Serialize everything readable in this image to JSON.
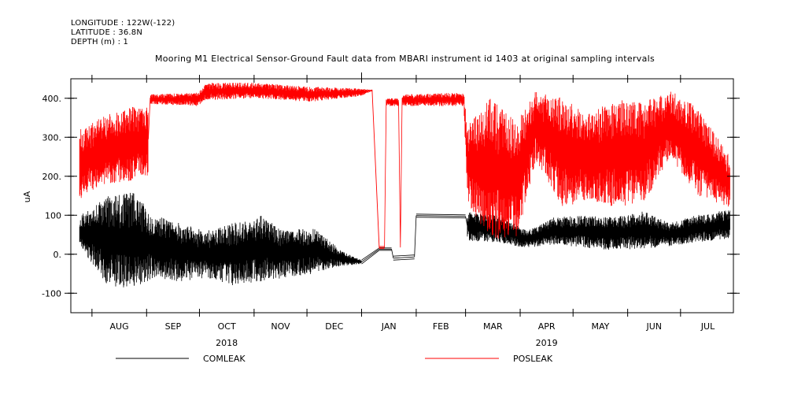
{
  "header": {
    "longitude": "LONGITUDE : 122W(-122)",
    "latitude": "LATITUDE : 36.8N",
    "depth": "DEPTH (m) : 1"
  },
  "chart_data": {
    "type": "line",
    "title": "Mooring M1 Electrical Sensor-Ground Fault data from MBARI instrument id 1403 at original sampling intervals",
    "ylabel": "uA",
    "ylim": [
      -150,
      450
    ],
    "yticks": [
      -100,
      0,
      100,
      200,
      300,
      400
    ],
    "yticklabels": [
      "-100",
      "0.",
      "100",
      "200.",
      "300.",
      "400."
    ],
    "xlim": [
      "2018-07-20",
      "2019-07-31"
    ],
    "xticklabels": [
      "AUG",
      "SEP",
      "OCT",
      "NOV",
      "DEC",
      "JAN",
      "FEB",
      "MAR",
      "APR",
      "MAY",
      "JUN",
      "JUL"
    ],
    "year_labels": [
      {
        "text": "2018",
        "month": "OCT"
      },
      {
        "text": "2019",
        "month": "APR"
      }
    ],
    "legend_placement": "bottom",
    "series": [
      {
        "name": "COMLEAK",
        "color": "#000000",
        "envelope": [
          {
            "date": "2018-07-25",
            "low": 20,
            "high": 100
          },
          {
            "date": "2018-08-10",
            "low": -80,
            "high": 150
          },
          {
            "date": "2018-08-25",
            "low": -90,
            "high": 160
          },
          {
            "date": "2018-09-05",
            "low": -60,
            "high": 100
          },
          {
            "date": "2018-09-20",
            "low": -70,
            "high": 80
          },
          {
            "date": "2018-10-05",
            "low": -60,
            "high": 60
          },
          {
            "date": "2018-10-20",
            "low": -80,
            "high": 80
          },
          {
            "date": "2018-11-05",
            "low": -70,
            "high": 100
          },
          {
            "date": "2018-11-20",
            "low": -60,
            "high": 60
          },
          {
            "date": "2018-12-05",
            "low": -50,
            "high": 70
          },
          {
            "date": "2018-12-20",
            "low": -30,
            "high": 10
          },
          {
            "date": "2019-01-01",
            "low": -25,
            "high": -15
          },
          {
            "date": "2019-01-11",
            "low": 10,
            "high": 16
          },
          {
            "date": "2019-01-18",
            "low": 10,
            "high": 16
          },
          {
            "date": "2019-01-19",
            "low": -15,
            "high": -5
          },
          {
            "date": "2019-01-31",
            "low": -12,
            "high": -2
          },
          {
            "date": "2019-02-01",
            "low": 95,
            "high": 103
          },
          {
            "date": "2019-03-01",
            "low": 93,
            "high": 101
          },
          {
            "date": "2019-03-02",
            "low": 35,
            "high": 110
          },
          {
            "date": "2019-03-20",
            "low": 30,
            "high": 100
          },
          {
            "date": "2019-04-05",
            "low": 15,
            "high": 60
          },
          {
            "date": "2019-04-20",
            "low": 25,
            "high": 95
          },
          {
            "date": "2019-05-10",
            "low": 15,
            "high": 100
          },
          {
            "date": "2019-05-25",
            "low": 10,
            "high": 95
          },
          {
            "date": "2019-06-10",
            "low": 15,
            "high": 110
          },
          {
            "date": "2019-06-25",
            "low": 20,
            "high": 80
          },
          {
            "date": "2019-07-10",
            "low": 30,
            "high": 100
          },
          {
            "date": "2019-07-29",
            "low": 40,
            "high": 115
          }
        ]
      },
      {
        "name": "POSLEAK",
        "color": "#ff0000",
        "envelope": [
          {
            "date": "2018-07-25",
            "low": 140,
            "high": 320
          },
          {
            "date": "2018-08-10",
            "low": 180,
            "high": 360
          },
          {
            "date": "2018-08-25",
            "low": 190,
            "high": 380
          },
          {
            "date": "2018-09-02",
            "low": 200,
            "high": 390
          },
          {
            "date": "2018-09-03",
            "low": 385,
            "high": 410
          },
          {
            "date": "2018-09-30",
            "low": 380,
            "high": 415
          },
          {
            "date": "2018-10-05",
            "low": 395,
            "high": 440
          },
          {
            "date": "2018-11-01",
            "low": 400,
            "high": 440
          },
          {
            "date": "2018-12-01",
            "low": 390,
            "high": 430
          },
          {
            "date": "2018-12-31",
            "low": 405,
            "high": 425
          },
          {
            "date": "2019-01-07",
            "low": 418,
            "high": 422
          },
          {
            "date": "2019-01-11",
            "low": 15,
            "high": 20
          },
          {
            "date": "2019-01-14",
            "low": 15,
            "high": 20
          },
          {
            "date": "2019-01-15",
            "low": 380,
            "high": 400
          },
          {
            "date": "2019-01-22",
            "low": 380,
            "high": 400
          },
          {
            "date": "2019-01-23",
            "low": 15,
            "high": 20
          },
          {
            "date": "2019-01-24",
            "low": 380,
            "high": 410
          },
          {
            "date": "2019-02-28",
            "low": 380,
            "high": 415
          },
          {
            "date": "2019-03-02",
            "low": 130,
            "high": 330
          },
          {
            "date": "2019-03-15",
            "low": 40,
            "high": 400
          },
          {
            "date": "2019-03-30",
            "low": 40,
            "high": 340
          },
          {
            "date": "2019-04-10",
            "low": 240,
            "high": 420
          },
          {
            "date": "2019-04-25",
            "low": 120,
            "high": 400
          },
          {
            "date": "2019-05-10",
            "low": 140,
            "high": 360
          },
          {
            "date": "2019-05-25",
            "low": 120,
            "high": 400
          },
          {
            "date": "2019-06-10",
            "low": 130,
            "high": 390
          },
          {
            "date": "2019-06-25",
            "low": 250,
            "high": 420
          },
          {
            "date": "2019-07-10",
            "low": 150,
            "high": 380
          },
          {
            "date": "2019-07-29",
            "low": 120,
            "high": 250
          }
        ]
      }
    ]
  }
}
